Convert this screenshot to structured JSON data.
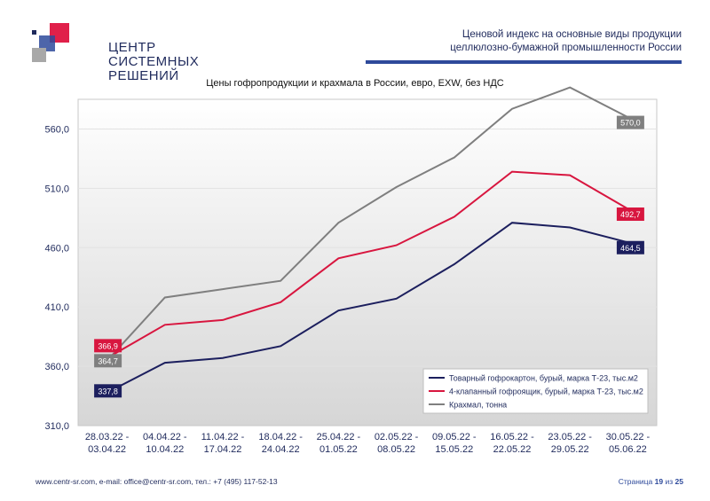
{
  "brand": {
    "line1": "ЦЕНТР",
    "line2": "СИСТЕМНЫХ",
    "line3": "РЕШЕНИЙ",
    "colors": {
      "red": "#e0204a",
      "blue": "#2e4a9b",
      "gray": "#9a9a9a"
    }
  },
  "header": {
    "line1": "Ценовой индекс на основные виды продукции",
    "line2": "целлюлозно-бумажной промышленности России",
    "bar_color": "#2e4a9b"
  },
  "footer": {
    "contacts": "www.centr-sr.com, e-mail: office@centr-sr.com, тел.: +7 (495) 117-52-13",
    "page_word": "Страница",
    "page_number": "19",
    "of_word": "из",
    "page_total": "25"
  },
  "chart_data": {
    "type": "line",
    "title": "Цены гофропродукции и крахмала в России, евро, EXW, без НДС",
    "categories": [
      [
        "28.03.22 -",
        "03.04.22"
      ],
      [
        "04.04.22 -",
        "10.04.22"
      ],
      [
        "11.04.22 -",
        "17.04.22"
      ],
      [
        "18.04.22 -",
        "24.04.22"
      ],
      [
        "25.04.22 -",
        "01.05.22"
      ],
      [
        "02.05.22 -",
        "08.05.22"
      ],
      [
        "09.05.22 -",
        "15.05.22"
      ],
      [
        "16.05.22 -",
        "22.05.22"
      ],
      [
        "23.05.22 -",
        "29.05.22"
      ],
      [
        "30.05.22 -",
        "05.06.22"
      ]
    ],
    "ylim": [
      310,
      585
    ],
    "yticks": [
      310,
      360,
      410,
      460,
      510,
      560
    ],
    "ytick_labels": [
      "310,0",
      "360,0",
      "410,0",
      "460,0",
      "510,0",
      "560,0"
    ],
    "grid": true,
    "legend_position": "bottom-right",
    "series": [
      {
        "name": "Товарный гофрокартон, бурый, марка Т-23, тыс.м2",
        "color": "#1c1f5e",
        "values": [
          337.8,
          363,
          367,
          377,
          407,
          417,
          446,
          481,
          477,
          464.5
        ],
        "labels": {
          "0": "337,8",
          "9": "464,5"
        }
      },
      {
        "name": "4-клапанный гофроящик, бурый, марка Т-23, тыс.м2",
        "color": "#d8163f",
        "values": [
          366.9,
          395,
          399,
          414,
          451,
          462,
          486,
          524,
          521,
          492.7
        ],
        "labels": {
          "0": "366,9",
          "9": "492,7"
        }
      },
      {
        "name": "Крахмал, тонна",
        "color": "#7f7f7f",
        "values": [
          364.7,
          418,
          425,
          432,
          481,
          511,
          536,
          577,
          595,
          570.0
        ],
        "labels": {
          "0": "364,7",
          "9": "570,0"
        }
      }
    ]
  }
}
